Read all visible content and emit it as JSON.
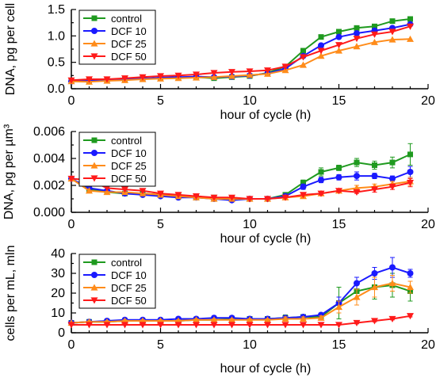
{
  "chart_data": [
    {
      "type": "line",
      "xlabel": "hour of cycle (h)",
      "ylabel": "DNA, pg per cell",
      "xlim": [
        0,
        20
      ],
      "ylim": [
        0,
        1.5
      ],
      "xticks": [
        "0",
        "5",
        "10",
        "15",
        "20"
      ],
      "yticks": [
        "0.0",
        "0.5",
        "1.0",
        "1.5"
      ],
      "x": [
        0,
        1,
        2,
        3,
        4,
        5,
        6,
        7,
        8,
        9,
        10,
        11,
        12,
        13,
        14,
        15,
        16,
        17,
        18,
        19
      ],
      "legend_position": "top-left",
      "series": [
        {
          "name": "control",
          "color": "#1f9a1f",
          "marker": "square",
          "values": [
            0.15,
            0.16,
            0.17,
            0.18,
            0.19,
            0.2,
            0.21,
            0.22,
            0.2,
            0.22,
            0.24,
            0.3,
            0.42,
            0.72,
            0.98,
            1.08,
            1.15,
            1.18,
            1.28,
            1.32
          ]
        },
        {
          "name": "DCF 10",
          "color": "#1a1aff",
          "marker": "circle",
          "values": [
            0.14,
            0.15,
            0.16,
            0.18,
            0.19,
            0.21,
            0.22,
            0.23,
            0.22,
            0.23,
            0.25,
            0.29,
            0.38,
            0.62,
            0.82,
            0.98,
            1.05,
            1.1,
            1.15,
            1.22
          ]
        },
        {
          "name": "DCF 25",
          "color": "#ff8c1a",
          "marker": "triangle-up",
          "values": [
            0.14,
            0.13,
            0.15,
            0.16,
            0.18,
            0.19,
            0.2,
            0.21,
            0.22,
            0.24,
            0.26,
            0.28,
            0.35,
            0.45,
            0.62,
            0.72,
            0.8,
            0.88,
            0.93,
            0.94
          ]
        },
        {
          "name": "DCF 50",
          "color": "#ff1a1a",
          "marker": "triangle-down",
          "values": [
            0.16,
            0.18,
            0.18,
            0.2,
            0.22,
            0.24,
            0.25,
            0.27,
            0.3,
            0.32,
            0.33,
            0.35,
            0.42,
            0.6,
            0.72,
            0.83,
            0.95,
            1.03,
            1.08,
            1.18
          ]
        }
      ]
    },
    {
      "type": "line",
      "xlabel": "hour of cycle (h)",
      "ylabel": "DNA, pg per µm³",
      "xlim": [
        0,
        20
      ],
      "ylim": [
        0,
        0.006
      ],
      "xticks": [
        "0",
        "5",
        "10",
        "15",
        "20"
      ],
      "yticks": [
        "0.000",
        "0.002",
        "0.004",
        "0.006"
      ],
      "x": [
        0,
        1,
        2,
        3,
        4,
        5,
        6,
        7,
        8,
        9,
        10,
        11,
        12,
        13,
        14,
        15,
        16,
        17,
        18,
        19
      ],
      "legend_position": "top-left",
      "series": [
        {
          "name": "control",
          "color": "#1f9a1f",
          "marker": "square",
          "values": [
            0.0025,
            0.0017,
            0.0015,
            0.0014,
            0.0014,
            0.0013,
            0.0012,
            0.0011,
            0.0011,
            0.001,
            0.001,
            0.001,
            0.0013,
            0.0022,
            0.003,
            0.0033,
            0.0037,
            0.0035,
            0.0037,
            0.0043
          ],
          "errors": [
            0,
            0,
            0,
            0,
            0,
            0,
            0,
            0,
            0,
            0,
            0,
            0,
            0,
            0.0002,
            0.0003,
            0.0002,
            0.0003,
            0.0003,
            0.0004,
            0.0008
          ]
        },
        {
          "name": "DCF 10",
          "color": "#1a1aff",
          "marker": "circle",
          "values": [
            0.0025,
            0.0018,
            0.0016,
            0.0014,
            0.0013,
            0.0012,
            0.0011,
            0.0011,
            0.001,
            0.0009,
            0.001,
            0.001,
            0.0012,
            0.0019,
            0.0024,
            0.0026,
            0.0027,
            0.0027,
            0.0025,
            0.003
          ],
          "errors": [
            0,
            0,
            0,
            0,
            0,
            0,
            0,
            0,
            0,
            0,
            0,
            0,
            0,
            0.0002,
            0.0002,
            0.0002,
            0.0003,
            0.0002,
            0.0002,
            0.0004
          ]
        },
        {
          "name": "DCF 25",
          "color": "#ff8c1a",
          "marker": "triangle-up",
          "values": [
            0.0025,
            0.0016,
            0.0015,
            0.0015,
            0.0014,
            0.0013,
            0.0012,
            0.0011,
            0.001,
            0.001,
            0.001,
            0.001,
            0.0011,
            0.0012,
            0.0014,
            0.0016,
            0.0018,
            0.0019,
            0.0021,
            0.0023
          ],
          "errors": [
            0,
            0,
            0,
            0,
            0,
            0,
            0,
            0,
            0,
            0,
            0,
            0,
            0,
            0,
            0.0001,
            0.0001,
            0.0002,
            0.0002,
            0.0002,
            0.0003
          ]
        },
        {
          "name": "DCF 50",
          "color": "#ff1a1a",
          "marker": "triangle-down",
          "values": [
            0.0025,
            0.0024,
            0.0018,
            0.0017,
            0.0016,
            0.0014,
            0.0013,
            0.0012,
            0.0011,
            0.0011,
            0.001,
            0.001,
            0.0011,
            0.0013,
            0.0014,
            0.0016,
            0.0015,
            0.0017,
            0.0019,
            0.0022
          ],
          "errors": [
            0,
            0.0002,
            0,
            0,
            0,
            0,
            0,
            0,
            0,
            0,
            0,
            0,
            0,
            0,
            0.0001,
            0.0001,
            0.0001,
            0.0002,
            0.0002,
            0.0003
          ]
        }
      ]
    },
    {
      "type": "line",
      "xlabel": "hour of cycle (h)",
      "ylabel": "cells per mL, mln",
      "xlim": [
        0,
        20
      ],
      "ylim": [
        0,
        40
      ],
      "xticks": [
        "0",
        "5",
        "10",
        "15",
        "20"
      ],
      "yticks": [
        "0",
        "10",
        "20",
        "30",
        "40"
      ],
      "x": [
        0,
        1,
        2,
        3,
        4,
        5,
        6,
        7,
        8,
        9,
        10,
        11,
        12,
        13,
        14,
        15,
        16,
        17,
        18,
        19
      ],
      "legend_position": "top-left",
      "series": [
        {
          "name": "control",
          "color": "#1f9a1f",
          "marker": "square",
          "values": [
            5,
            5.5,
            5.5,
            6,
            6,
            6,
            6,
            6.5,
            6.5,
            7,
            7,
            7,
            7.5,
            8,
            8,
            15,
            21,
            23,
            24,
            21
          ],
          "errors": [
            0,
            1,
            0.5,
            0.5,
            0.5,
            0.5,
            0.5,
            0.5,
            0.5,
            1,
            0.5,
            0.5,
            1.5,
            1,
            1,
            8,
            7,
            6,
            6,
            5
          ]
        },
        {
          "name": "DCF 10",
          "color": "#1a1aff",
          "marker": "circle",
          "values": [
            5,
            5.5,
            6,
            6.5,
            6.5,
            6.5,
            7,
            7,
            7.5,
            7.5,
            7,
            7,
            7.5,
            8,
            9,
            15,
            25,
            30,
            33,
            30
          ],
          "errors": [
            0,
            0.5,
            0.5,
            0.5,
            0.5,
            0.5,
            0.5,
            1,
            1,
            1,
            0.5,
            0.5,
            1,
            1,
            1,
            3,
            3,
            3,
            5,
            2
          ]
        },
        {
          "name": "DCF 25",
          "color": "#ff8c1a",
          "marker": "triangle-up",
          "values": [
            5,
            5.5,
            5.5,
            6,
            6,
            6,
            6,
            6.5,
            6.5,
            6.5,
            6.5,
            6.5,
            7,
            7,
            7.5,
            13,
            18,
            23,
            25,
            23
          ],
          "errors": [
            0,
            0.5,
            0.5,
            0.5,
            0.5,
            0.5,
            0.5,
            0.5,
            0.5,
            0.5,
            0.5,
            0.5,
            1,
            1,
            1,
            3,
            4,
            5,
            4,
            3
          ]
        },
        {
          "name": "DCF 50",
          "color": "#ff1a1a",
          "marker": "triangle-down",
          "values": [
            4,
            4,
            4,
            4,
            4,
            4,
            4,
            4,
            4,
            4,
            4,
            4,
            4,
            4,
            4,
            4,
            5,
            6,
            7,
            8.5
          ],
          "errors": [
            0,
            0,
            0,
            0,
            0,
            0,
            0,
            0,
            0,
            0,
            0,
            0,
            0,
            0,
            0,
            0,
            0.5,
            0.5,
            0.5,
            0.5
          ]
        }
      ]
    }
  ]
}
